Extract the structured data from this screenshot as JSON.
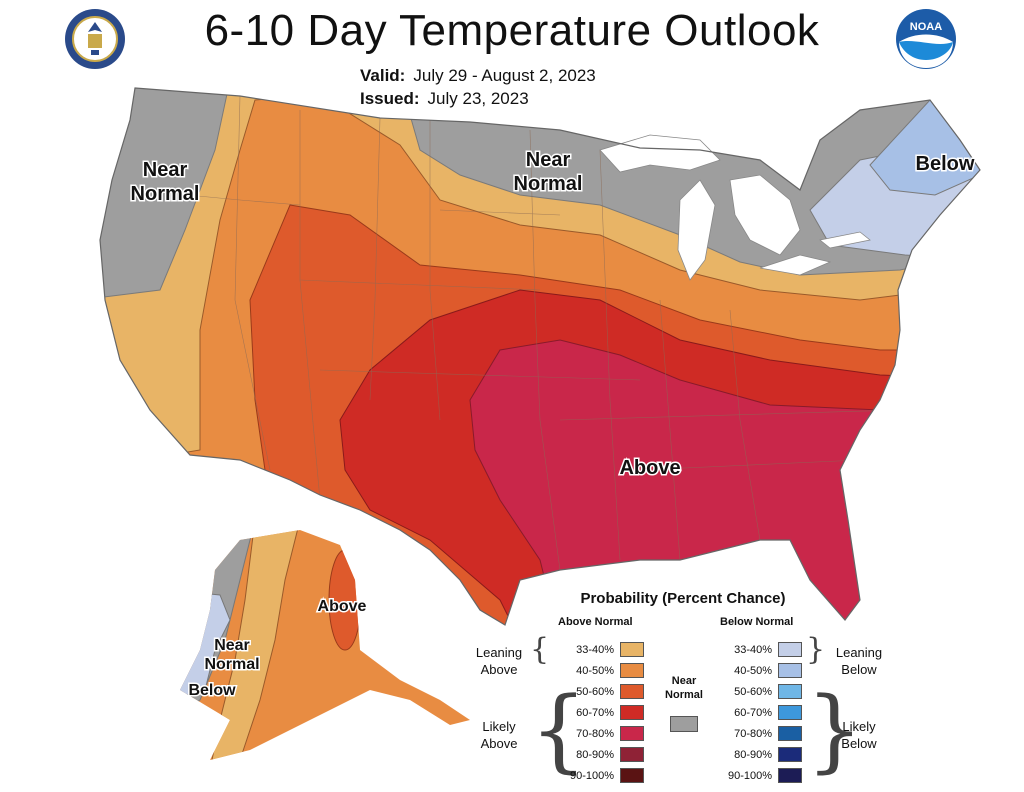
{
  "title": "6-10 Day Temperature Outlook",
  "valid_label": "Valid:",
  "valid_value": "July 29 - August 2, 2023",
  "issued_label": "Issued:",
  "issued_value": "July 23, 2023",
  "logos": [
    "department-of-commerce-seal",
    "noaa-logo"
  ],
  "noaa_text": "NOAA",
  "map_labels": {
    "northwest": "Near\nNormal",
    "north_central": "Near\nNormal",
    "northeast": "Below",
    "south": "Above",
    "alaska_east": "Above",
    "alaska_west": "Near\nNormal",
    "alaska_southwest": "Below"
  },
  "legend": {
    "title": "Probability (Percent Chance)",
    "above_header": "Above Normal",
    "below_header": "Below Normal",
    "near_header": "Near\nNormal",
    "leaning_above": "Leaning\nAbove",
    "likely_above": "Likely\nAbove",
    "leaning_below": "Leaning\nBelow",
    "likely_below": "Likely\nBelow",
    "above_rows": [
      {
        "range": "33-40%",
        "color": "#e8b466"
      },
      {
        "range": "40-50%",
        "color": "#e88c42"
      },
      {
        "range": "50-60%",
        "color": "#de5a2c"
      },
      {
        "range": "60-70%",
        "color": "#cf2b25"
      },
      {
        "range": "70-80%",
        "color": "#c9274a"
      },
      {
        "range": "80-90%",
        "color": "#8f2236"
      },
      {
        "range": "90-100%",
        "color": "#5a1313"
      }
    ],
    "below_rows": [
      {
        "range": "33-40%",
        "color": "#c4cfe8"
      },
      {
        "range": "40-50%",
        "color": "#a7c0e6"
      },
      {
        "range": "50-60%",
        "color": "#6fb6e6"
      },
      {
        "range": "60-70%",
        "color": "#3d98dc"
      },
      {
        "range": "70-80%",
        "color": "#1a5fa3"
      },
      {
        "range": "80-90%",
        "color": "#1b2b7a"
      },
      {
        "range": "90-100%",
        "color": "#1c1c55"
      }
    ],
    "near_color": "#9e9e9e"
  }
}
